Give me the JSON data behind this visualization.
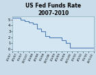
{
  "title_line1": "US Fed Funds Rate",
  "title_line2": "2007-2010",
  "title_fontsize": 5.5,
  "background_color": "#c8dcea",
  "plot_bg_color": "#d4e6f2",
  "line_color": "#4f7db3",
  "line_width": 0.8,
  "ylim": [
    -0.3,
    5.5
  ],
  "yticks": [
    0,
    1,
    2,
    3,
    4,
    5
  ],
  "values": [
    5.25,
    5.25,
    5.0,
    4.75,
    4.5,
    4.25,
    3.5,
    3.0,
    2.25,
    2.0,
    2.0,
    2.0,
    1.5,
    1.0,
    0.25,
    0.25,
    0.25,
    0.25,
    0.25,
    0.25,
    0.25
  ],
  "n_xpoints": 21,
  "xtick_labels": [
    "1/1/07",
    "4/1/07",
    "7/1/07",
    "10/1/07",
    "1/1/08",
    "4/1/08",
    "7/1/08",
    "10/1/08",
    "1/1/09",
    "4/1/09",
    "7/1/09",
    "10/1/09",
    "1/1/10",
    "4/1/10",
    "7/1/10",
    "10/1/10"
  ],
  "xtick_fontsize": 3.0,
  "ytick_fontsize": 3.8,
  "border_color": "#8aaabb"
}
